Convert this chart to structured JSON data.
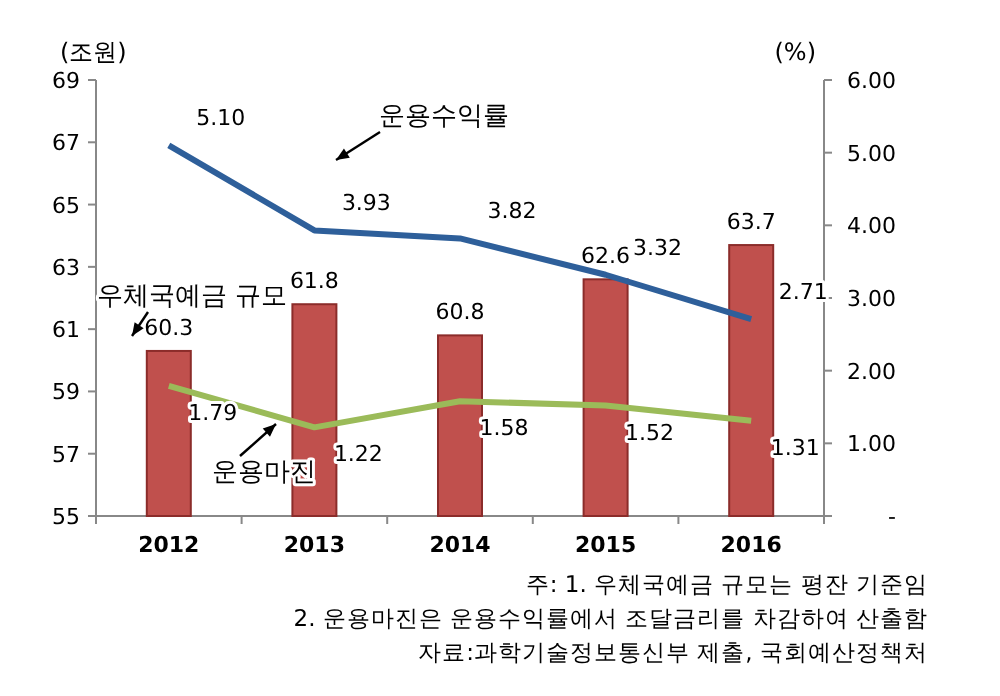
{
  "chart_data": {
    "type": "bar",
    "ylabel": "(조원)",
    "y2label": "(%)",
    "categories": [
      "2012",
      "2013",
      "2014",
      "2015",
      "2016"
    ],
    "series": [
      {
        "name": "우체국예금 규모",
        "type": "bar",
        "color": "#c0504d",
        "values": [
          60.3,
          61.8,
          60.8,
          62.6,
          63.7
        ],
        "value_labels": [
          "60.3",
          "61.8",
          "60.8",
          "62.6",
          "63.7"
        ]
      },
      {
        "name": "운용수익률",
        "type": "line",
        "axis": "y2",
        "color": "#2e5f9a",
        "values": [
          5.1,
          3.93,
          3.82,
          3.32,
          2.71
        ],
        "value_labels": [
          "5.10",
          "3.93",
          "3.82",
          "3.32",
          "2.71"
        ]
      },
      {
        "name": "운용마진",
        "type": "line",
        "axis": "y2",
        "color": "#9bbb59",
        "values": [
          1.79,
          1.22,
          1.58,
          1.52,
          1.31
        ],
        "value_labels": [
          "1.79",
          "1.22",
          "1.58",
          "1.52",
          "1.31"
        ]
      }
    ],
    "ylim": [
      55,
      69
    ],
    "yticks": [
      55,
      57,
      59,
      61,
      63,
      65,
      67,
      69
    ],
    "y2lim": [
      0,
      6
    ],
    "y2ticks": [
      {
        "value": 0,
        "label": "-"
      },
      {
        "value": 1,
        "label": "1.00"
      },
      {
        "value": 2,
        "label": "2.00"
      },
      {
        "value": 3,
        "label": "3.00"
      },
      {
        "value": 4,
        "label": "4.00"
      },
      {
        "value": 5,
        "label": "5.00"
      },
      {
        "value": 6,
        "label": "6.00"
      }
    ],
    "legend": false,
    "grid": false,
    "marker": "none",
    "line_style": "solid",
    "annotations": [
      "주: 1. 우체국예금 규모는 평잔 기준임",
      "2. 운용마진은 운용수익률에서 조달금리를 차감하여 산출함",
      "자료:과학기술정보통신부 제출, 국회예산정책처"
    ]
  }
}
